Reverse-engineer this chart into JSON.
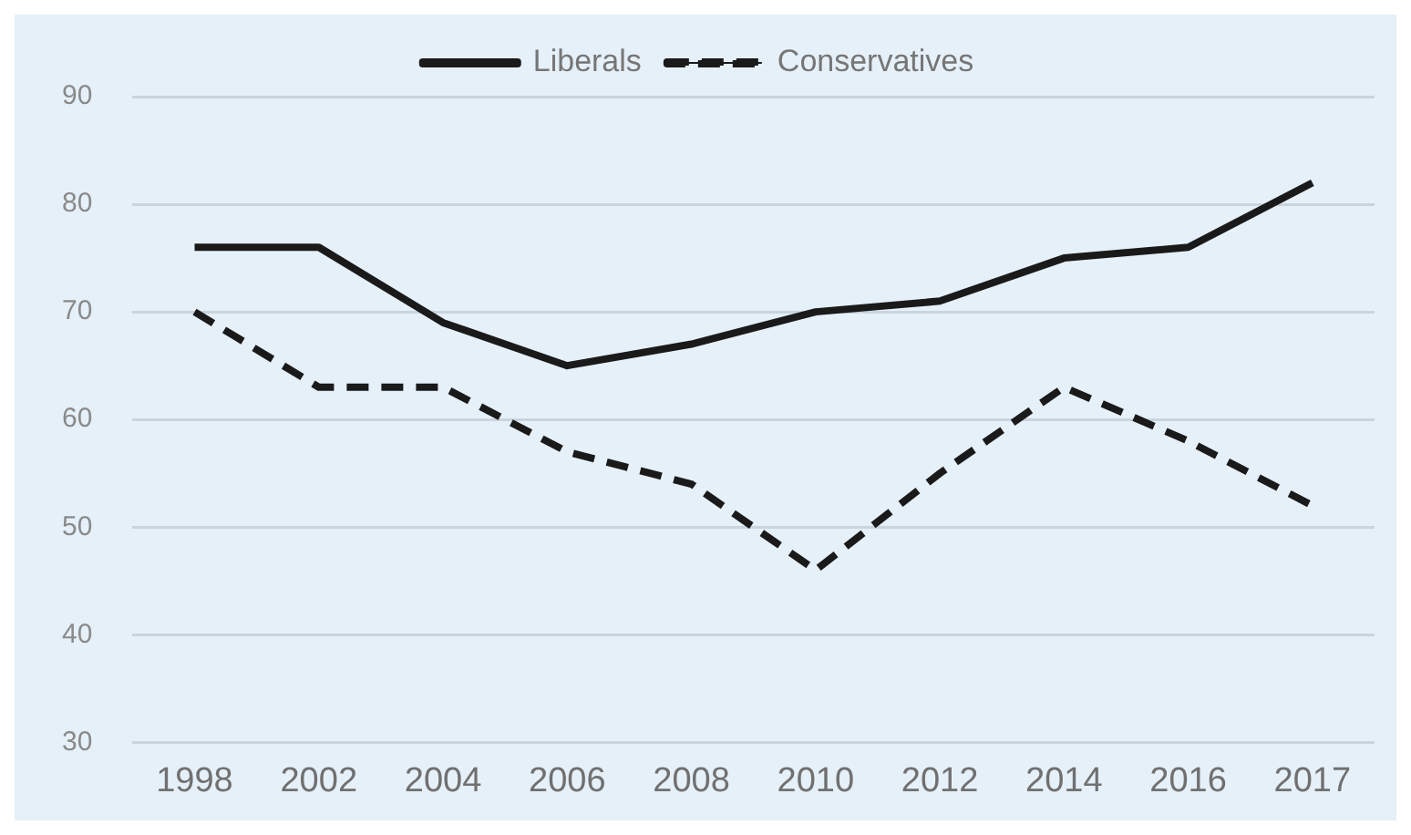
{
  "chart_data": {
    "type": "line",
    "categories": [
      "1998",
      "2002",
      "2004",
      "2006",
      "2008",
      "2010",
      "2012",
      "2014",
      "2016",
      "2017"
    ],
    "series": [
      {
        "name": "Liberals",
        "color": "#1a1a1a",
        "line_style": "solid",
        "values": [
          76,
          76,
          69,
          65,
          67,
          70,
          71,
          75,
          76,
          82
        ]
      },
      {
        "name": "Conservatives",
        "color": "#1a1a1a",
        "line_style": "dashed",
        "values": [
          70,
          63,
          63,
          57,
          54,
          46,
          55,
          63,
          58,
          52
        ]
      }
    ],
    "ylim": [
      30,
      90
    ],
    "yticks": [
      30,
      40,
      50,
      60,
      70,
      80,
      90
    ],
    "grid": "y",
    "legend": "top",
    "marker": "none"
  }
}
